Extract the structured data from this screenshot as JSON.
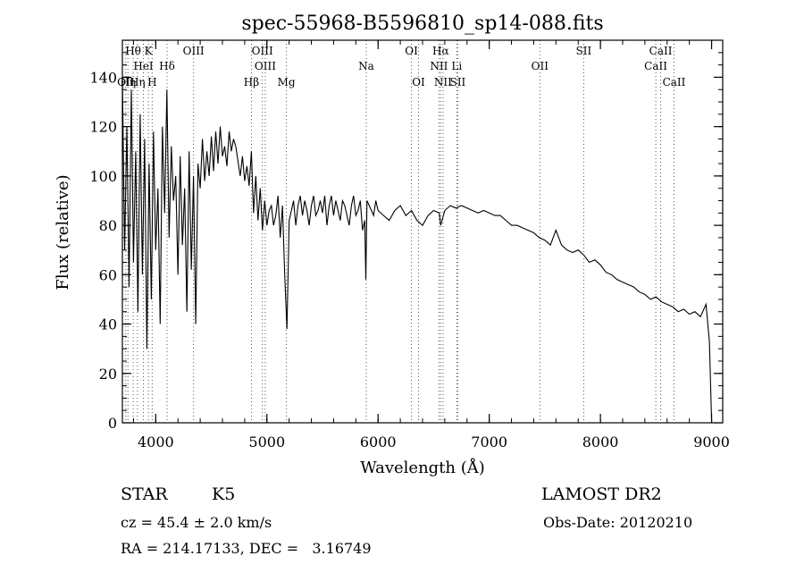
{
  "chart_data": {
    "type": "line",
    "title": "spec-55968-B5596810_sp14-088.fits",
    "xlabel": "Wavelength (Å)",
    "ylabel": "Flux (relative)",
    "xlim": [
      3700,
      9100
    ],
    "ylim": [
      0,
      155
    ],
    "xticks": [
      4000,
      5000,
      6000,
      7000,
      8000,
      9000
    ],
    "yticks": [
      0,
      20,
      40,
      60,
      80,
      100,
      120,
      140
    ],
    "x_minor_step": 200,
    "y_minor_step": 5,
    "series": [
      {
        "x": [
          3700,
          3720,
          3740,
          3760,
          3780,
          3800,
          3820,
          3840,
          3860,
          3880,
          3900,
          3920,
          3940,
          3960,
          3980,
          4000,
          4020,
          4040,
          4060,
          4080,
          4100,
          4120,
          4140,
          4160,
          4180,
          4200,
          4220,
          4240,
          4260,
          4280,
          4300,
          4320,
          4340,
          4360,
          4380,
          4400,
          4420,
          4440,
          4460,
          4480,
          4500,
          4520,
          4540,
          4560,
          4580,
          4600,
          4620,
          4640,
          4660,
          4680,
          4700,
          4720,
          4740,
          4760,
          4780,
          4800,
          4820,
          4840,
          4860,
          4880,
          4900,
          4920,
          4940,
          4960,
          4980,
          5000,
          5020,
          5040,
          5060,
          5080,
          5100,
          5120,
          5140,
          5160,
          5180,
          5200,
          5220,
          5240,
          5260,
          5280,
          5300,
          5320,
          5340,
          5360,
          5380,
          5400,
          5420,
          5440,
          5460,
          5480,
          5500,
          5520,
          5540,
          5560,
          5580,
          5600,
          5620,
          5640,
          5660,
          5680,
          5700,
          5720,
          5740,
          5760,
          5780,
          5800,
          5820,
          5840,
          5860,
          5880,
          5890,
          5900,
          5920,
          5940,
          5960,
          5980,
          6000,
          6050,
          6100,
          6150,
          6200,
          6250,
          6300,
          6350,
          6400,
          6450,
          6500,
          6550,
          6563,
          6600,
          6650,
          6700,
          6750,
          6800,
          6850,
          6900,
          6950,
          7000,
          7050,
          7100,
          7150,
          7200,
          7250,
          7300,
          7350,
          7400,
          7450,
          7500,
          7550,
          7600,
          7650,
          7700,
          7750,
          7800,
          7850,
          7900,
          7950,
          8000,
          8050,
          8100,
          8150,
          8200,
          8250,
          8300,
          8350,
          8400,
          8450,
          8500,
          8550,
          8600,
          8650,
          8700,
          8750,
          8800,
          8850,
          8900,
          8950,
          8980,
          9000
        ],
        "y": [
          140,
          70,
          120,
          55,
          135,
          65,
          110,
          45,
          125,
          60,
          115,
          30,
          105,
          50,
          118,
          70,
          95,
          40,
          120,
          85,
          135,
          75,
          112,
          90,
          100,
          60,
          108,
          72,
          95,
          45,
          110,
          62,
          100,
          40,
          105,
          95,
          115,
          98,
          110,
          100,
          116,
          102,
          118,
          105,
          120,
          108,
          112,
          104,
          118,
          110,
          115,
          112,
          106,
          100,
          108,
          98,
          104,
          96,
          110,
          85,
          100,
          82,
          95,
          78,
          90,
          80,
          86,
          88,
          80,
          84,
          92,
          75,
          88,
          60,
          38,
          82,
          86,
          90,
          80,
          88,
          92,
          84,
          90,
          86,
          80,
          88,
          92,
          84,
          86,
          90,
          85,
          92,
          80,
          88,
          92,
          84,
          90,
          86,
          82,
          90,
          88,
          84,
          80,
          88,
          92,
          84,
          86,
          90,
          78,
          82,
          58,
          90,
          88,
          86,
          84,
          90,
          86,
          84,
          82,
          86,
          88,
          84,
          86,
          82,
          80,
          84,
          86,
          85,
          80,
          86,
          88,
          87,
          88,
          87,
          86,
          85,
          86,
          85,
          84,
          84,
          82,
          80,
          80,
          79,
          78,
          77,
          75,
          74,
          72,
          78,
          72,
          70,
          69,
          70,
          68,
          65,
          66,
          64,
          61,
          60,
          58,
          57,
          56,
          55,
          53,
          52,
          50,
          51,
          49,
          48,
          47,
          45,
          46,
          44,
          45,
          43,
          48,
          33,
          0
        ]
      }
    ],
    "line_markers": [
      {
        "wave": 3730,
        "label": "OII",
        "row": 3
      },
      {
        "wave": 3750,
        "label": "Hη",
        "row": 3
      },
      {
        "wave": 3797,
        "label": "Hθ",
        "row": 1
      },
      {
        "wave": 3835,
        "label": "Hη",
        "row": 3
      },
      {
        "wave": 3889,
        "label": "HeI",
        "row": 2
      },
      {
        "wave": 3934,
        "label": "K",
        "row": 1
      },
      {
        "wave": 3968,
        "label": "H",
        "row": 3
      },
      {
        "wave": 4102,
        "label": "Hδ",
        "row": 2
      },
      {
        "wave": 4340,
        "label": "OIII",
        "row": 1
      },
      {
        "wave": 4861,
        "label": "Hβ",
        "row": 3
      },
      {
        "wave": 4959,
        "label": "OIII",
        "row": 1
      },
      {
        "wave": 4985,
        "label": "OIII",
        "row": 2
      },
      {
        "wave": 5175,
        "label": "Mg",
        "row": 3
      },
      {
        "wave": 5893,
        "label": "Na",
        "row": 2
      },
      {
        "wave": 6300,
        "label": "OI",
        "row": 1
      },
      {
        "wave": 6364,
        "label": "OI",
        "row": 3
      },
      {
        "wave": 6548,
        "label": "NII",
        "row": 2
      },
      {
        "wave": 6563,
        "label": "Hα",
        "row": 1
      },
      {
        "wave": 6584,
        "label": "NII",
        "row": 3
      },
      {
        "wave": 6708,
        "label": "Li",
        "row": 2
      },
      {
        "wave": 6717,
        "label": "SII",
        "row": 3
      },
      {
        "wave": 7455,
        "label": "OII",
        "row": 2
      },
      {
        "wave": 7850,
        "label": "SII",
        "row": 1
      },
      {
        "wave": 8498,
        "label": "CaII",
        "row": 2
      },
      {
        "wave": 8542,
        "label": "CaII",
        "row": 1
      },
      {
        "wave": 8662,
        "label": "CaII",
        "row": 3
      }
    ]
  },
  "info": {
    "object_class": "STAR",
    "subclass": "K5",
    "survey": "LAMOST DR2",
    "redshift": "cz = 45.4 ± 2.0 km/s",
    "obs_date": "Obs-Date: 20120210",
    "coords": "RA = 214.17133, DEC =   3.16749"
  }
}
